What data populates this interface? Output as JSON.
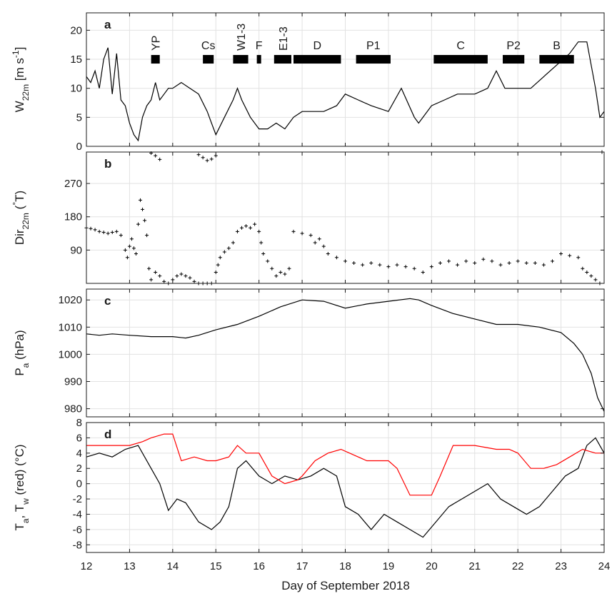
{
  "figure": {
    "xlabel": "Day of September 2018",
    "x_ticks": [
      12,
      13,
      14,
      15,
      16,
      17,
      18,
      19,
      20,
      21,
      22,
      23,
      24
    ]
  },
  "chart_data": [
    {
      "type": "line",
      "panel_label": "a",
      "ylabel": {
        "main": "W",
        "sub": "22m",
        "unit": " [m s",
        "unit_sup": "-1",
        "unit_close": "]"
      },
      "xlim": [
        12,
        24
      ],
      "ylim": [
        0,
        23
      ],
      "y_ticks": [
        0,
        5,
        10,
        15,
        20
      ],
      "grid": true,
      "series": [
        {
          "color": "#000000",
          "x": [
            12,
            12.1,
            12.2,
            12.3,
            12.4,
            12.5,
            12.6,
            12.7,
            12.8,
            12.9,
            13.0,
            13.1,
            13.2,
            13.3,
            13.4,
            13.5,
            13.6,
            13.7,
            13.8,
            13.9,
            14.0,
            14.2,
            14.4,
            14.6,
            14.8,
            14.9,
            15.0,
            15.2,
            15.4,
            15.5,
            15.6,
            15.8,
            16.0,
            16.2,
            16.4,
            16.6,
            16.8,
            17.0,
            17.2,
            17.5,
            17.8,
            18.0,
            18.3,
            18.6,
            19.0,
            19.3,
            19.6,
            19.7,
            20.0,
            20.3,
            20.6,
            21.0,
            21.3,
            21.5,
            21.7,
            22.0,
            22.3,
            22.6,
            22.9,
            23.2,
            23.4,
            23.6,
            23.8,
            23.9,
            24.0
          ],
          "y": [
            12,
            11,
            13,
            10,
            15,
            17,
            9,
            16,
            8,
            7,
            4,
            2,
            1,
            5,
            7,
            8,
            11,
            8,
            9,
            10,
            10,
            11,
            10,
            9,
            6,
            4,
            2,
            5,
            8,
            10,
            8,
            5,
            3,
            3,
            4,
            3,
            5,
            6,
            6,
            6,
            7,
            9,
            8,
            7,
            6,
            10,
            5,
            4,
            7,
            8,
            9,
            9,
            10,
            13,
            10,
            10,
            10,
            12,
            14,
            16,
            18,
            18,
            10,
            5,
            6
          ]
        }
      ],
      "segments": [
        {
          "label": "YP",
          "start": 13.5,
          "end": 13.7,
          "rotated": true
        },
        {
          "label": "Cs",
          "start": 14.7,
          "end": 14.95,
          "rotated": false
        },
        {
          "label": "W1-3",
          "start": 15.4,
          "end": 15.75,
          "rotated": true
        },
        {
          "label": "F",
          "start": 15.95,
          "end": 16.05,
          "rotated": false
        },
        {
          "label": "E1-3",
          "start": 16.35,
          "end": 16.75,
          "rotated": true
        },
        {
          "label": "D",
          "start": 16.8,
          "end": 17.9,
          "rotated": false
        },
        {
          "label": "P1",
          "start": 18.25,
          "end": 19.05,
          "rotated": false
        },
        {
          "label": "C",
          "start": 20.05,
          "end": 21.3,
          "rotated": false
        },
        {
          "label": "P2",
          "start": 21.65,
          "end": 22.15,
          "rotated": false
        },
        {
          "label": "B",
          "start": 22.5,
          "end": 23.3,
          "rotated": false
        }
      ],
      "segment_y": 15
    },
    {
      "type": "scatter",
      "panel_label": "b",
      "ylabel": {
        "main": "Dir",
        "sub": "22m",
        "unit": " (",
        "unit_sup": "°",
        "unit_close": "T)"
      },
      "xlim": [
        12,
        24
      ],
      "ylim": [
        0,
        355
      ],
      "y_ticks": [
        90,
        180,
        270
      ],
      "grid": true,
      "series": [
        {
          "color": "#000000",
          "marker": "+",
          "x": [
            12.0,
            12.1,
            12.2,
            12.3,
            12.4,
            12.5,
            12.6,
            12.7,
            12.8,
            12.9,
            12.95,
            13.0,
            13.05,
            13.1,
            13.15,
            13.2,
            13.25,
            13.3,
            13.35,
            13.4,
            13.45,
            13.5,
            13.6,
            13.7,
            13.8,
            13.9,
            14.0,
            14.1,
            14.2,
            14.3,
            14.4,
            14.5,
            14.6,
            14.7,
            14.8,
            14.9,
            15.0,
            15.05,
            15.1,
            15.2,
            15.3,
            15.4,
            15.5,
            15.6,
            15.7,
            15.8,
            15.9,
            16.0,
            16.05,
            16.1,
            16.2,
            16.3,
            16.4,
            16.5,
            16.6,
            16.7,
            16.8,
            17.0,
            17.2,
            17.3,
            17.4,
            17.5,
            17.6,
            17.8,
            18.0,
            18.2,
            18.4,
            18.6,
            18.8,
            19.0,
            19.2,
            19.4,
            19.6,
            19.8,
            20.0,
            20.2,
            20.4,
            20.6,
            20.8,
            21.0,
            21.2,
            21.4,
            21.6,
            21.8,
            22.0,
            22.2,
            22.4,
            22.6,
            22.8,
            23.0,
            23.2,
            23.4,
            23.5,
            23.6,
            23.7,
            23.8,
            23.9,
            13.5,
            13.6,
            13.7,
            14.6,
            14.7,
            14.8,
            14.9,
            15.0,
            23.95
          ],
          "y": [
            150,
            148,
            145,
            140,
            138,
            135,
            138,
            140,
            130,
            90,
            70,
            100,
            120,
            95,
            80,
            160,
            225,
            200,
            170,
            130,
            40,
            10,
            30,
            20,
            5,
            0,
            10,
            20,
            25,
            20,
            15,
            5,
            0,
            0,
            0,
            0,
            30,
            50,
            70,
            85,
            95,
            110,
            140,
            150,
            155,
            150,
            160,
            140,
            110,
            80,
            60,
            40,
            20,
            30,
            25,
            40,
            140,
            135,
            130,
            110,
            120,
            100,
            80,
            70,
            60,
            55,
            50,
            55,
            50,
            45,
            50,
            45,
            40,
            30,
            45,
            55,
            60,
            50,
            60,
            55,
            65,
            60,
            50,
            55,
            60,
            55,
            55,
            50,
            60,
            80,
            75,
            70,
            40,
            30,
            20,
            10,
            0,
            352,
            345,
            335,
            348,
            340,
            332,
            336,
            345,
            355
          ]
        }
      ]
    },
    {
      "type": "line",
      "panel_label": "c",
      "ylabel": {
        "main": "P",
        "sub": "a",
        "unit": " (hPa)",
        "unit_sup": "",
        "unit_close": ""
      },
      "xlim": [
        12,
        24
      ],
      "ylim": [
        977,
        1024
      ],
      "y_ticks": [
        980,
        990,
        1000,
        1010,
        1020
      ],
      "grid": true,
      "series": [
        {
          "color": "#000000",
          "x": [
            12.0,
            12.3,
            12.6,
            13.0,
            13.5,
            14.0,
            14.3,
            14.6,
            15.0,
            15.5,
            16.0,
            16.5,
            17.0,
            17.5,
            18.0,
            18.5,
            19.0,
            19.5,
            19.7,
            20.0,
            20.5,
            21.0,
            21.5,
            22.0,
            22.5,
            23.0,
            23.3,
            23.5,
            23.7,
            23.85,
            24.0
          ],
          "y": [
            1007.5,
            1007,
            1007.5,
            1007,
            1006.5,
            1006.5,
            1006,
            1007,
            1009,
            1011,
            1014,
            1017.5,
            1020,
            1019.5,
            1017,
            1018.5,
            1019.5,
            1020.5,
            1020,
            1018,
            1015,
            1013,
            1011,
            1011,
            1010,
            1008,
            1004,
            1000,
            993,
            984,
            979
          ]
        }
      ]
    },
    {
      "type": "line",
      "panel_label": "d",
      "ylabel": {
        "main": "T",
        "sub": "a",
        "unit": ", T",
        "unit_sup": "",
        "unit_close": "",
        "sub2": "w",
        "tail": " (red) (°C)"
      },
      "xlim": [
        12,
        24
      ],
      "ylim": [
        -9,
        8
      ],
      "y_ticks": [
        -8,
        -6,
        -4,
        -2,
        0,
        2,
        4,
        6,
        8
      ],
      "grid": true,
      "series": [
        {
          "name": "T_a",
          "color": "#000000",
          "x": [
            12.0,
            12.3,
            12.6,
            12.9,
            13.2,
            13.5,
            13.7,
            13.9,
            14.1,
            14.3,
            14.6,
            14.9,
            15.1,
            15.3,
            15.5,
            15.7,
            16.0,
            16.3,
            16.6,
            16.9,
            17.2,
            17.5,
            17.8,
            18.0,
            18.3,
            18.6,
            18.9,
            19.2,
            19.5,
            19.8,
            20.1,
            20.4,
            20.7,
            21.0,
            21.3,
            21.6,
            21.9,
            22.2,
            22.5,
            22.8,
            23.1,
            23.4,
            23.6,
            23.8,
            24.0
          ],
          "y": [
            3.5,
            4,
            3.5,
            4.5,
            5,
            2,
            0,
            -3.5,
            -2,
            -2.5,
            -5,
            -6,
            -5,
            -3,
            2,
            3,
            1,
            0,
            1,
            0.5,
            1,
            2,
            1,
            -3,
            -4,
            -6,
            -4,
            -5,
            -6,
            -7,
            -5,
            -3,
            -2,
            -1,
            0,
            -2,
            -3,
            -4,
            -3,
            -1,
            1,
            2,
            5,
            6,
            4
          ]
        },
        {
          "name": "T_w",
          "color": "#ff0000",
          "x": [
            12.0,
            12.5,
            13.0,
            13.3,
            13.5,
            13.8,
            14.0,
            14.2,
            14.5,
            14.8,
            15.0,
            15.3,
            15.5,
            15.7,
            16.0,
            16.3,
            16.6,
            16.9,
            17.0,
            17.3,
            17.6,
            17.9,
            18.1,
            18.5,
            19.0,
            19.2,
            19.5,
            19.8,
            20.0,
            20.2,
            20.5,
            21.0,
            21.5,
            21.8,
            22.0,
            22.3,
            22.6,
            22.9,
            23.2,
            23.5,
            23.8,
            24.0
          ],
          "y": [
            5,
            5,
            5,
            5.5,
            6,
            6.5,
            6.5,
            3,
            3.5,
            3,
            3,
            3.5,
            5,
            4,
            4,
            1,
            0,
            0.5,
            1,
            3,
            4,
            4.5,
            4,
            3,
            3,
            2,
            -1.5,
            -1.5,
            -1.5,
            1,
            5,
            5,
            4.5,
            4.5,
            4,
            2,
            2,
            2.5,
            3.5,
            4.5,
            4,
            4
          ]
        }
      ]
    }
  ]
}
